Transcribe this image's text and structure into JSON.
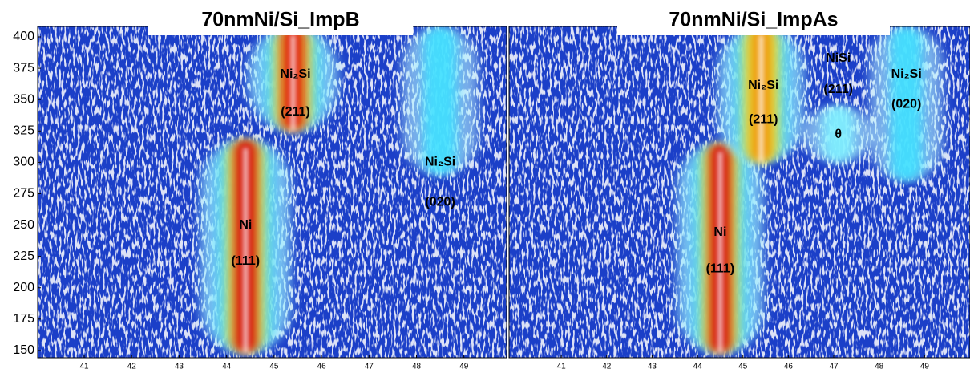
{
  "chart_data": [
    {
      "type": "contour",
      "title": "70nmNi/Si_ImpB",
      "xlim": [
        40.02,
        49.9
      ],
      "xticks": [
        41,
        42,
        43,
        44,
        45,
        46,
        47,
        48,
        49
      ],
      "ylim": [
        144.2,
        408.3
      ],
      "yticks": [
        150,
        175,
        200,
        225,
        250,
        275,
        300,
        325,
        350,
        375,
        400
      ],
      "ridges": [
        {
          "x": 44.4,
          "y": [
            148,
            318
          ],
          "color": "#d40000"
        },
        {
          "x": 45.4,
          "y": [
            325,
            408
          ],
          "color": "#e01000"
        },
        {
          "x": 48.5,
          "y": [
            290,
            408
          ],
          "color": "#40e0ff"
        }
      ],
      "annotations": [
        {
          "text": "Ni₂Si",
          "x": 45.45,
          "y": 370
        },
        {
          "text": "(211)",
          "x": 45.45,
          "y": 340
        },
        {
          "text": "Ni₂Si",
          "x": 48.5,
          "y": 300
        },
        {
          "text": "(020)",
          "x": 48.5,
          "y": 268
        },
        {
          "text": "Ni",
          "x": 44.4,
          "y": 250
        },
        {
          "text": "(111)",
          "x": 44.4,
          "y": 221
        }
      ]
    },
    {
      "type": "contour",
      "title": "70nmNi/Si_ImpAs",
      "xlim": [
        39.85,
        50.0
      ],
      "xticks": [
        41,
        42,
        43,
        44,
        45,
        46,
        47,
        48,
        49
      ],
      "ylim": [
        144.2,
        408.3
      ],
      "ridges": [
        {
          "x": 44.5,
          "y": [
            148,
            315
          ],
          "color": "#d40000"
        },
        {
          "x": 45.4,
          "y": [
            300,
            408
          ],
          "color": "#f09000"
        },
        {
          "x": 47.1,
          "y": [
            300,
            345
          ],
          "color": "#80f0ff"
        },
        {
          "x": 48.6,
          "y": [
            285,
            408
          ],
          "color": "#40e0ff"
        }
      ],
      "annotations": [
        {
          "text": "Ni₂Si",
          "x": 45.45,
          "y": 361
        },
        {
          "text": "(211)",
          "x": 45.45,
          "y": 334
        },
        {
          "text": "NiSi",
          "x": 47.1,
          "y": 383
        },
        {
          "text": "(211)",
          "x": 47.1,
          "y": 358
        },
        {
          "text": "θ",
          "x": 47.1,
          "y": 322
        },
        {
          "text": "Ni₂Si",
          "x": 48.6,
          "y": 370
        },
        {
          "text": "(020)",
          "x": 48.6,
          "y": 346
        },
        {
          "text": "Ni",
          "x": 44.5,
          "y": 244
        },
        {
          "text": "(111)",
          "x": 44.5,
          "y": 215
        }
      ]
    }
  ]
}
